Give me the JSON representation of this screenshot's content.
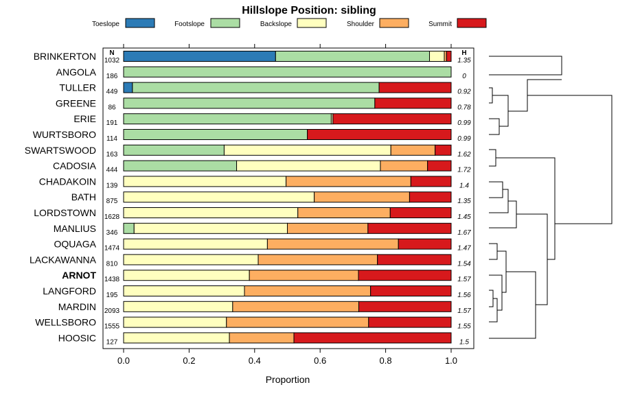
{
  "chart_data": {
    "type": "bar",
    "stacked": true,
    "orientation": "horizontal",
    "title": "Hillslope Position: sibling",
    "xlabel": "Proportion",
    "ylabel": "",
    "xlim": [
      0,
      1
    ],
    "xticks": [
      "0.0",
      "0.2",
      "0.4",
      "0.6",
      "0.8",
      "1.0"
    ],
    "n_header": "N",
    "h_header": "H",
    "legend": [
      {
        "name": "Toeslope",
        "color": "#2c7bb6"
      },
      {
        "name": "Footslope",
        "color": "#abdda4"
      },
      {
        "name": "Backslope",
        "color": "#ffffbf"
      },
      {
        "name": "Shoulder",
        "color": "#fdae61"
      },
      {
        "name": "Summit",
        "color": "#d7191c"
      }
    ],
    "rows": [
      {
        "name": "BRINKERTON",
        "n": "1032",
        "h": "1.35",
        "bold": false,
        "values": [
          0.464,
          0.47,
          0.045,
          0.007,
          0.014
        ]
      },
      {
        "name": "ANGOLA",
        "n": "186",
        "h": "0",
        "bold": false,
        "values": [
          0,
          1.0,
          0,
          0,
          0
        ]
      },
      {
        "name": "TULLER",
        "n": "449",
        "h": "0.92",
        "bold": false,
        "values": [
          0.027,
          0.753,
          0,
          0,
          0.22
        ]
      },
      {
        "name": "GREENE",
        "n": "86",
        "h": "0.78",
        "bold": false,
        "values": [
          0,
          0.767,
          0,
          0,
          0.233
        ]
      },
      {
        "name": "ERIE",
        "n": "191",
        "h": "0.99",
        "bold": false,
        "values": [
          0,
          0.634,
          0.005,
          0,
          0.361
        ]
      },
      {
        "name": "WURTSBORO",
        "n": "114",
        "h": "0.99",
        "bold": false,
        "values": [
          0,
          0.561,
          0,
          0,
          0.439
        ]
      },
      {
        "name": "SWARTSWOOD",
        "n": "163",
        "h": "1.62",
        "bold": false,
        "values": [
          0,
          0.307,
          0.509,
          0.135,
          0.049
        ]
      },
      {
        "name": "CADOSIA",
        "n": "444",
        "h": "1.72",
        "bold": false,
        "values": [
          0,
          0.345,
          0.439,
          0.144,
          0.072
        ]
      },
      {
        "name": "CHADAKOIN",
        "n": "139",
        "h": "1.4",
        "bold": false,
        "values": [
          0,
          0,
          0.496,
          0.381,
          0.123
        ]
      },
      {
        "name": "BATH",
        "n": "875",
        "h": "1.35",
        "bold": false,
        "values": [
          0,
          0,
          0.582,
          0.291,
          0.127
        ]
      },
      {
        "name": "LORDSTOWN",
        "n": "1628",
        "h": "1.45",
        "bold": false,
        "values": [
          0,
          0,
          0.532,
          0.282,
          0.186
        ]
      },
      {
        "name": "MANLIUS",
        "n": "346",
        "h": "1.67",
        "bold": false,
        "values": [
          0,
          0.032,
          0.468,
          0.246,
          0.254
        ]
      },
      {
        "name": "OQUAGA",
        "n": "1474",
        "h": "1.47",
        "bold": false,
        "values": [
          0,
          0,
          0.439,
          0.4,
          0.161
        ]
      },
      {
        "name": "LACKAWANNA",
        "n": "810",
        "h": "1.54",
        "bold": false,
        "values": [
          0,
          0,
          0.411,
          0.364,
          0.225
        ]
      },
      {
        "name": "ARNOT",
        "n": "1438",
        "h": "1.57",
        "bold": true,
        "values": [
          0,
          0,
          0.384,
          0.333,
          0.283
        ]
      },
      {
        "name": "LANGFORD",
        "n": "195",
        "h": "1.56",
        "bold": false,
        "values": [
          0,
          0,
          0.369,
          0.385,
          0.246
        ]
      },
      {
        "name": "MARDIN",
        "n": "2093",
        "h": "1.57",
        "bold": false,
        "values": [
          0,
          0,
          0.333,
          0.385,
          0.282
        ]
      },
      {
        "name": "WELLSBORO",
        "n": "1555",
        "h": "1.55",
        "bold": false,
        "values": [
          0,
          0,
          0.314,
          0.434,
          0.252
        ]
      },
      {
        "name": "HOOSIC",
        "n": "127",
        "h": "1.5",
        "bold": false,
        "values": [
          0,
          0,
          0.323,
          0.197,
          0.48
        ]
      }
    ]
  }
}
